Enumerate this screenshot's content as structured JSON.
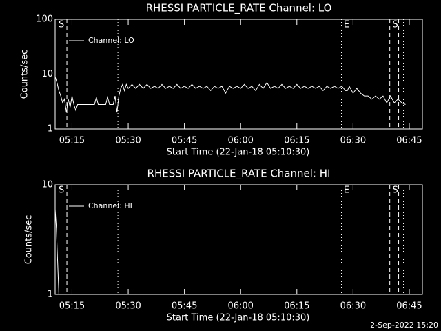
{
  "chart_data": [
    {
      "type": "line",
      "title": "RHESSI PARTICLE_RATE Channel: LO",
      "x_label": "Start Time (22-Jan-18 05:10:30)",
      "y_label": "Counts/sec",
      "log_y": true,
      "xlim": [
        "05:10:30",
        "06:48:30"
      ],
      "ylim": [
        1,
        100
      ],
      "yticks": [
        1,
        10,
        100
      ],
      "xticks": [
        "05:15",
        "05:30",
        "05:45",
        "06:00",
        "06:15",
        "06:30",
        "06:45"
      ],
      "legend": "upper left",
      "markers": [
        {
          "x": "05:13:38",
          "style": "dashed"
        },
        {
          "x": "05:27:15",
          "style": "dotted"
        },
        {
          "x": "06:26:54",
          "style": "dotted"
        },
        {
          "x": "06:39:48",
          "style": "dashed"
        },
        {
          "x": "06:42:10",
          "style": "dashed"
        },
        {
          "x": "06:43:27",
          "style": "dotted"
        }
      ],
      "flags": [
        {
          "text": "S",
          "x": "05:11:25"
        },
        {
          "text": "E",
          "x": "06:27:30"
        },
        {
          "text": "S",
          "x": "06:40:30"
        }
      ],
      "series": [
        {
          "name": "Channel: LO",
          "color": "#ffffff",
          "x": [
            "05:10:30",
            "05:11:00",
            "05:11:30",
            "05:12:00",
            "05:12:30",
            "05:13:00",
            "05:13:30",
            "05:14:00",
            "05:14:30",
            "05:15:00",
            "05:15:30",
            "05:16:00",
            "05:16:30",
            "05:20:00",
            "05:21:00",
            "05:21:30",
            "05:22:00",
            "05:24:00",
            "05:24:30",
            "05:25:00",
            "05:26:00",
            "05:26:30",
            "05:27:00",
            "05:27:30",
            "05:28:00",
            "05:28:30",
            "05:29:00",
            "05:29:30",
            "05:30",
            "05:31",
            "05:32",
            "05:33",
            "05:34",
            "05:35",
            "05:36",
            "05:37",
            "05:38",
            "05:39",
            "05:40",
            "05:41",
            "05:42",
            "05:43",
            "05:44",
            "05:45",
            "05:46",
            "05:47",
            "05:48",
            "05:49",
            "05:50",
            "05:51",
            "05:52",
            "05:53",
            "05:54",
            "05:55",
            "05:56",
            "05:57",
            "05:58",
            "05:59",
            "06:00",
            "06:01",
            "06:02",
            "06:03",
            "06:04",
            "06:05",
            "06:06",
            "06:07",
            "06:08",
            "06:09",
            "06:10",
            "06:11",
            "06:12",
            "06:13",
            "06:14",
            "06:15",
            "06:16",
            "06:17",
            "06:18",
            "06:19",
            "06:20",
            "06:21",
            "06:22",
            "06:23",
            "06:24",
            "06:25",
            "06:26",
            "06:27",
            "06:28",
            "06:28:30",
            "06:29",
            "06:30",
            "06:31",
            "06:32",
            "06:33",
            "06:34",
            "06:35",
            "06:36",
            "06:37",
            "06:38",
            "06:39",
            "06:40",
            "06:41",
            "06:42",
            "06:43",
            "06:44"
          ],
          "values": [
            9,
            7,
            5,
            4,
            3,
            3.5,
            2,
            3.5,
            2.5,
            4,
            2.8,
            2.2,
            2.8,
            2.8,
            2.8,
            3.8,
            2.8,
            2.8,
            3.8,
            2.8,
            2.8,
            4,
            2,
            4,
            5.5,
            6.5,
            5,
            6.5,
            5.5,
            6.5,
            5.5,
            6.5,
            5.5,
            6.5,
            5.5,
            6,
            5.5,
            6.5,
            5.5,
            6,
            5.5,
            6.5,
            5.5,
            6,
            5.5,
            6.5,
            5.5,
            6,
            5.5,
            6,
            5,
            6,
            5.5,
            6,
            4.5,
            6,
            5.5,
            6,
            5.5,
            6.5,
            5.5,
            6,
            5,
            6.5,
            5.5,
            7,
            5.5,
            6,
            5.5,
            6.5,
            5.5,
            6,
            5.5,
            6.5,
            5.5,
            6,
            5.5,
            6,
            5.5,
            6,
            5,
            6,
            5.5,
            6,
            5.5,
            6,
            5,
            5,
            6,
            4.5,
            5.5,
            4.5,
            4,
            4,
            3.5,
            4,
            3.5,
            4,
            3,
            4,
            3,
            3.5,
            3,
            2.8
          ]
        }
      ]
    },
    {
      "type": "line",
      "title": "RHESSI PARTICLE_RATE Channel: HI",
      "x_label": "Start Time (22-Jan-18 05:10:30)",
      "y_label": "Counts/sec",
      "log_y": true,
      "xlim": [
        "05:10:30",
        "06:48:30"
      ],
      "ylim": [
        1,
        10
      ],
      "yticks": [
        1,
        10
      ],
      "xticks": [
        "05:15",
        "05:30",
        "05:45",
        "06:00",
        "06:15",
        "06:30",
        "06:45"
      ],
      "legend": "upper left",
      "markers": [
        {
          "x": "05:13:38",
          "style": "dashed"
        },
        {
          "x": "05:27:15",
          "style": "dotted"
        },
        {
          "x": "06:26:54",
          "style": "dotted"
        },
        {
          "x": "06:39:48",
          "style": "dashed"
        },
        {
          "x": "06:42:10",
          "style": "dashed"
        },
        {
          "x": "06:43:27",
          "style": "dotted"
        }
      ],
      "flags": [
        {
          "text": "S",
          "x": "05:11:25"
        },
        {
          "text": "E",
          "x": "06:27:30"
        },
        {
          "text": "S",
          "x": "06:40:30"
        }
      ],
      "series": [
        {
          "name": "Channel: HI",
          "color": "#ffffff",
          "x": [
            "05:10:30",
            "05:10:50",
            "05:11:10",
            "05:11:30"
          ],
          "values": [
            6,
            4,
            2,
            1
          ]
        }
      ]
    }
  ],
  "footer": "2-Sep-2022 15:20"
}
